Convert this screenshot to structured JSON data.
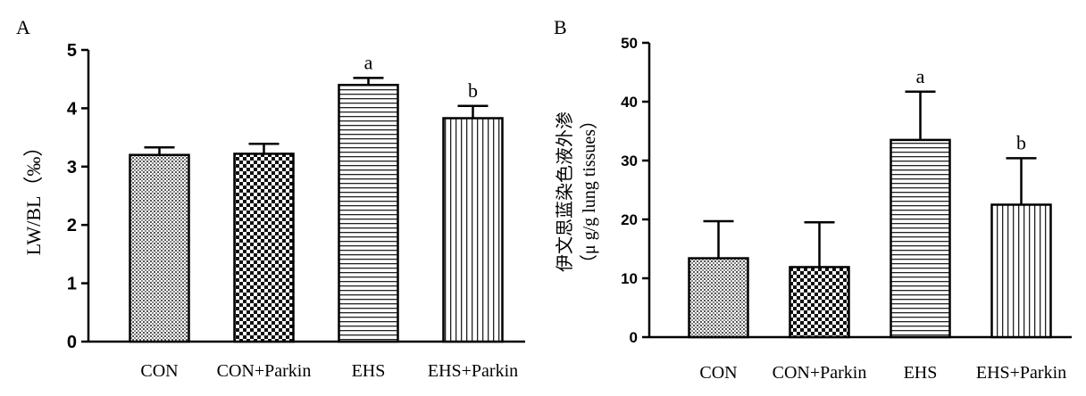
{
  "chart_data": [
    {
      "panel_label": "A",
      "type": "bar",
      "ylabel": "LW/BL（‰）",
      "ylim": [
        0,
        5
      ],
      "yticks": [
        "0",
        "1",
        "2",
        "3",
        "4",
        "5"
      ],
      "categories": [
        "CON",
        "CON+Parkin",
        "EHS",
        "EHS+Parkin"
      ],
      "values": [
        3.2,
        3.22,
        4.4,
        3.83
      ],
      "errors": [
        0.13,
        0.17,
        0.12,
        0.21
      ],
      "annotations": [
        "",
        "",
        "a",
        "b"
      ],
      "patterns": [
        "dense-dots",
        "checker",
        "horizontal-lines",
        "vertical-lines"
      ],
      "grid": false
    },
    {
      "panel_label": "B",
      "type": "bar",
      "ylabel_line1": "伊文思蓝染色液外渗",
      "ylabel_line2": "（μ g/g lung tissues）",
      "ylim": [
        0,
        50
      ],
      "yticks": [
        "0",
        "10",
        "20",
        "30",
        "40",
        "50"
      ],
      "categories": [
        "CON",
        "CON+Parkin",
        "EHS",
        "EHS+Parkin"
      ],
      "values": [
        13.4,
        11.9,
        33.5,
        22.5
      ],
      "errors": [
        6.3,
        7.6,
        8.2,
        7.9
      ],
      "annotations": [
        "",
        "",
        "a",
        "b"
      ],
      "patterns": [
        "dense-dots",
        "checker",
        "horizontal-lines",
        "vertical-lines"
      ],
      "grid": false
    }
  ]
}
